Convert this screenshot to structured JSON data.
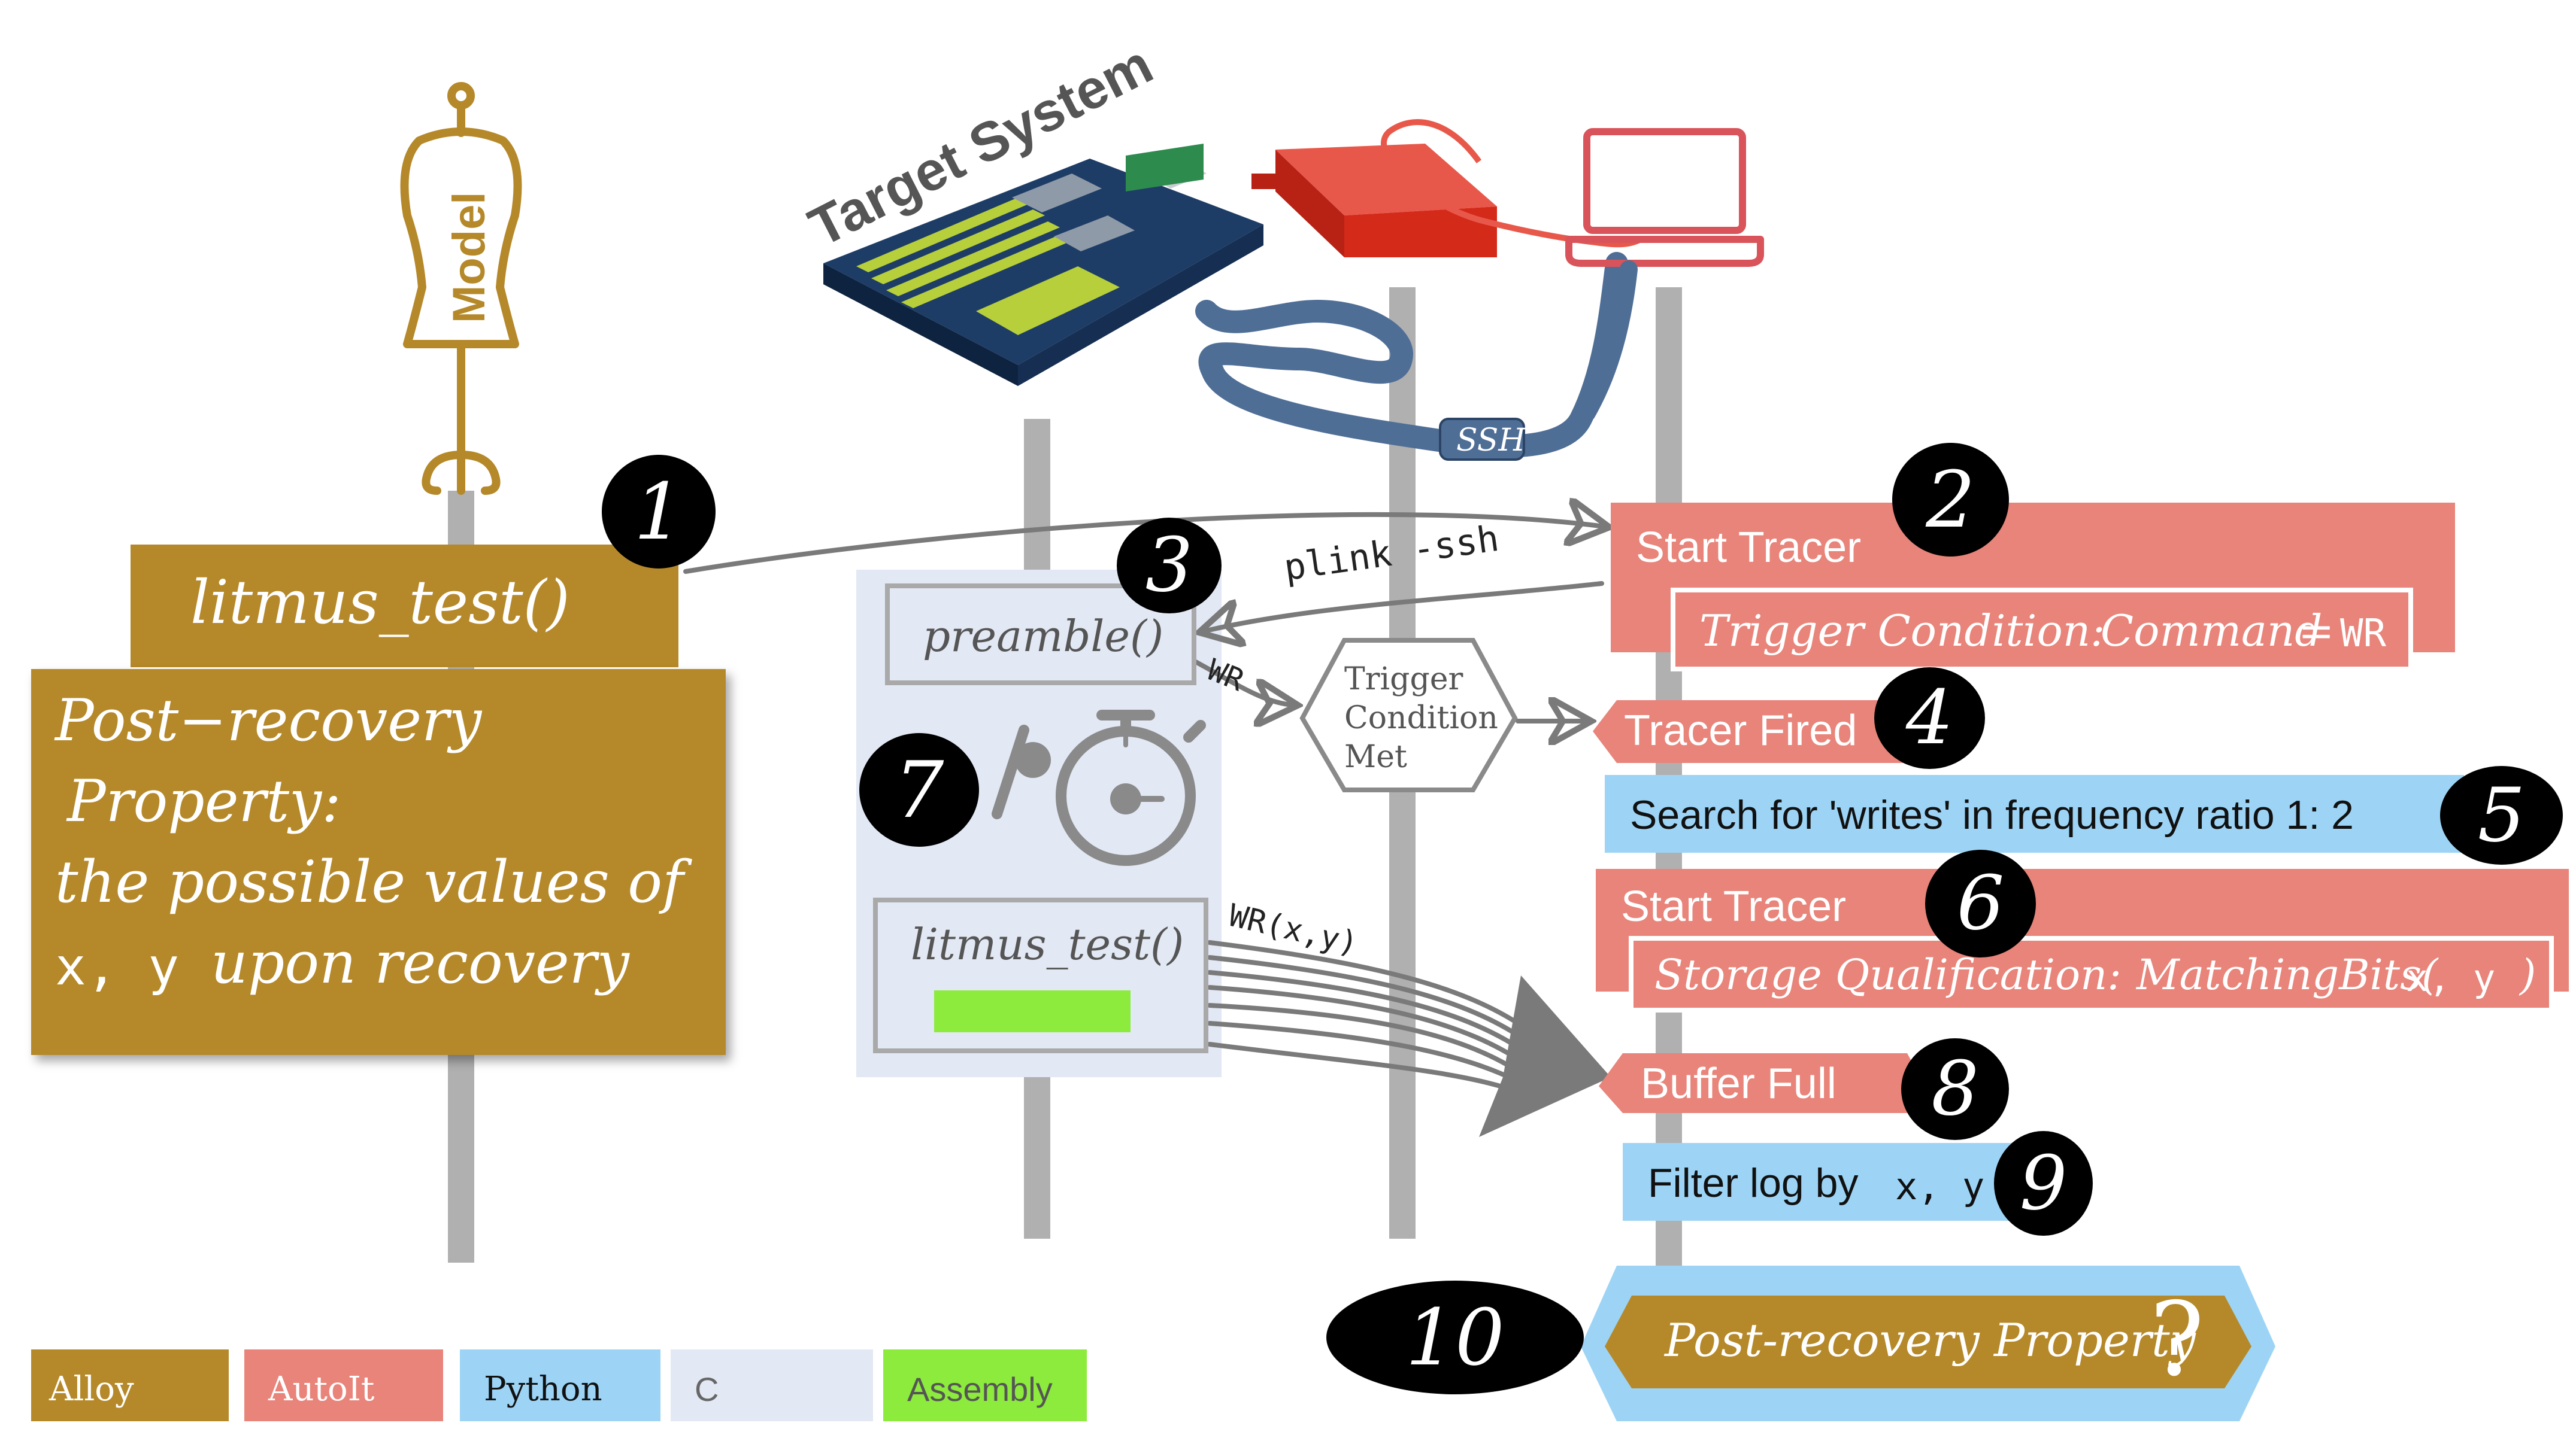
{
  "target_system": {
    "label": "Target System"
  },
  "model": {
    "label": "Model"
  },
  "ssh": {
    "label": "SSH"
  },
  "alloy": {
    "litmus_test": "litmus_test()",
    "property": {
      "line1": "Post−recovery",
      "line2": "Property:",
      "line3": "the possible values of",
      "line4_vars": "x, y",
      "line4_rest": "upon recovery"
    }
  },
  "c_block": {
    "preamble": "preamble()",
    "litmus_test": "litmus_test()"
  },
  "edges": {
    "plink": "plink -ssh",
    "wr": "WR",
    "wr_xy": "WR(x,y)"
  },
  "trigger_node": {
    "line1": "Trigger",
    "line2": "Condition",
    "line3": "Met"
  },
  "autoit": {
    "start_tracer_1": "Start Tracer",
    "trigger_condition_label": "Trigger Condition:",
    "trigger_condition_value": "Command",
    "trigger_condition_eq": "=",
    "trigger_condition_wr": "WR",
    "tracer_fired": "Tracer Fired",
    "start_tracer_2": "Start Tracer",
    "storage_label": "Storage Qualification:",
    "storage_value": "MatchingBits(",
    "storage_vars": "x, y",
    "storage_close": ")",
    "buffer_full": "Buffer Full"
  },
  "python": {
    "search": "Search for 'writes' in frequency ratio 1: 2",
    "filter_prefix": "Filter log by",
    "filter_vars": "x, y"
  },
  "result": {
    "label": "Post-recovery Property",
    "mark": "?"
  },
  "steps": [
    "1",
    "2",
    "3",
    "4",
    "5",
    "6",
    "7",
    "8",
    "9",
    "10"
  ],
  "legend": [
    {
      "label": "Alloy",
      "color": "#B5892A"
    },
    {
      "label": "AutoIt",
      "color": "#E8847A"
    },
    {
      "label": "Python",
      "color": "#9DD4F5"
    },
    {
      "label": "C",
      "color": "#E2E8F4"
    },
    {
      "label": "Assembly",
      "color": "#8CEB3C"
    }
  ],
  "colors": {
    "alloy": "#B5892A",
    "autoit": "#E8847A",
    "python": "#9DD4F5",
    "c": "#E2E8F4",
    "assembly": "#8CEB3C",
    "lifeline": "#B0B0B0",
    "arrow": "#7A7A7A",
    "cable": "#4F6E96"
  }
}
